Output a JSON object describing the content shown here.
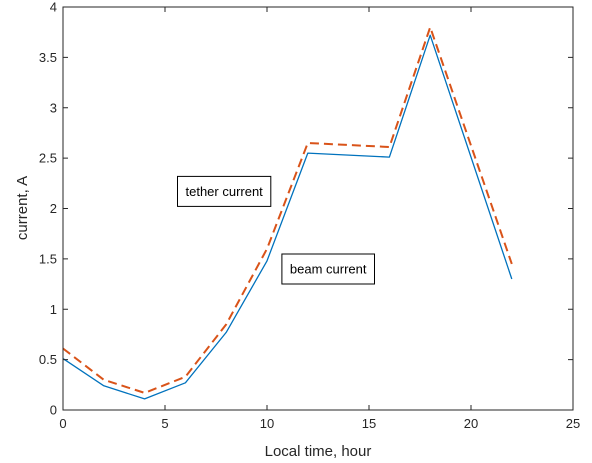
{
  "chart_data": {
    "type": "line",
    "xlabel": "Local time, hour",
    "ylabel": "current, A",
    "xlim": [
      0,
      25
    ],
    "ylim": [
      0,
      4
    ],
    "xticks": [
      0,
      5,
      10,
      15,
      20,
      25
    ],
    "yticks": [
      0,
      0.5,
      1,
      1.5,
      2,
      2.5,
      3,
      3.5,
      4
    ],
    "xtick_labels": [
      "0",
      "5",
      "10",
      "15",
      "20",
      "25"
    ],
    "ytick_labels": [
      "0",
      "0.5",
      "1",
      "1.5",
      "2",
      "2.5",
      "3",
      "3.5",
      "4"
    ],
    "grid": false,
    "x": [
      0,
      2,
      4,
      6,
      8,
      10,
      12,
      16,
      18,
      22
    ],
    "series": [
      {
        "values": [
          0.51,
          0.24,
          0.11,
          0.27,
          0.77,
          1.48,
          2.55,
          2.51,
          3.72,
          1.3
        ],
        "color": "#0072BD",
        "style": "solid"
      },
      {
        "values": [
          0.61,
          0.3,
          0.17,
          0.33,
          0.85,
          1.6,
          2.65,
          2.61,
          3.8,
          1.45
        ],
        "color": "#D95319",
        "style": "dashed"
      }
    ],
    "annotations": [
      {
        "text": "tether current",
        "x": 7.9,
        "y": 2.17
      },
      {
        "text": "beam current",
        "x": 13.0,
        "y": 1.4
      }
    ]
  }
}
